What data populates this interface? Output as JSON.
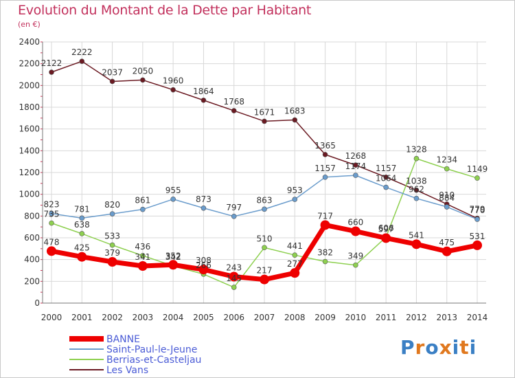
{
  "header": {
    "title": "Evolution du Montant de la Dette par Habitant",
    "unit": "(en €)"
  },
  "logo": {
    "text": "Proxiti",
    "letters": [
      "P",
      "r",
      "o",
      "x",
      "i",
      "t",
      "i"
    ],
    "colors": [
      "#3a7fc4",
      "#e0781e",
      "#3a7fc4",
      "#e0781e",
      "#3a7fc4",
      "#e0781e",
      "#3a7fc4"
    ]
  },
  "chart_data": {
    "type": "line",
    "title": "Evolution du Montant de la Dette par Habitant",
    "ylabel": "(en €)",
    "xlabel": "",
    "ylim": [
      0,
      2400
    ],
    "yticks": [
      0,
      200,
      400,
      600,
      800,
      1000,
      1200,
      1400,
      1600,
      1800,
      2000,
      2200,
      2400
    ],
    "grid": true,
    "legend_position": "bottom-left",
    "x": [
      "2000",
      "2001",
      "2002",
      "2003",
      "2004",
      "2005",
      "2006",
      "2007",
      "2008",
      "2009",
      "2010",
      "2011",
      "2012",
      "2013",
      "2014"
    ],
    "series": [
      {
        "name": "Les Vans",
        "color": "#6b1a22",
        "values": [
          2122,
          2222,
          2037,
          2050,
          1960,
          1864,
          1768,
          1671,
          1683,
          1365,
          1268,
          1157,
          1038,
          910,
          779
        ],
        "labels": [
          "2122",
          "2222",
          "2037",
          "2050",
          "1960",
          "1864",
          "1768",
          "1671",
          "1683",
          "1365",
          "1268",
          "1157",
          "1038",
          "910",
          "779"
        ]
      },
      {
        "name": "Berrias-et-Casteljau",
        "color": "#8ed050",
        "values": [
          735,
          638,
          533,
          436,
          342,
          266,
          145,
          510,
          441,
          382,
          349,
          606,
          1328,
          1234,
          1149
        ],
        "labels": [
          "735",
          "638",
          "533",
          "436",
          "342",
          "266",
          "145",
          "510",
          "441",
          "382",
          "349",
          "606",
          "1328",
          "1234",
          "1149"
        ]
      },
      {
        "name": "Saint-Paul-le-Jeune",
        "color": "#6a9ccc",
        "values": [
          823,
          781,
          820,
          861,
          955,
          873,
          797,
          863,
          953,
          1157,
          1174,
          1064,
          962,
          884,
          770
        ],
        "labels": [
          "823",
          "781",
          "820",
          "861",
          "955",
          "873",
          "797",
          "863",
          "953",
          "1157",
          "1174",
          "1064",
          "962",
          "884",
          "770"
        ]
      },
      {
        "name": "BANNE",
        "color": "#ee0000",
        "values": [
          478,
          425,
          379,
          341,
          352,
          308,
          243,
          217,
          277,
          717,
          660,
          597,
          541,
          475,
          531
        ],
        "labels": [
          "478",
          "425",
          "379",
          "341",
          "352",
          "308",
          "243",
          "217",
          "277",
          "717",
          "660",
          "597",
          "541",
          "475",
          "531"
        ]
      }
    ]
  }
}
